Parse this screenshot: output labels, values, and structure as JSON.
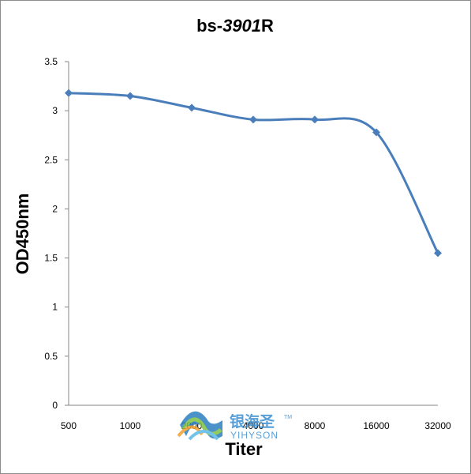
{
  "chart_data": {
    "type": "line",
    "title": {
      "prefix": "bs-",
      "number": "3901",
      "suffix": "R"
    },
    "xlabel": "Titer",
    "ylabel": "OD450nm",
    "categories": [
      "500",
      "1000",
      "2000",
      "4000",
      "8000",
      "16000",
      "32000"
    ],
    "series": [
      {
        "values": [
          3.18,
          3.15,
          3.03,
          2.91,
          2.91,
          2.78,
          1.55
        ],
        "color": "#4a7ebb"
      }
    ],
    "ylim": [
      0,
      3.5
    ],
    "yticks": [
      "0",
      "0.5",
      "1",
      "1.5",
      "2",
      "2.5",
      "3",
      "3.5"
    ],
    "grid": false,
    "legend": "none",
    "marker": "diamond"
  },
  "watermark": {
    "cn": "银海圣",
    "en": "YIHYSON",
    "tm": "TM"
  }
}
